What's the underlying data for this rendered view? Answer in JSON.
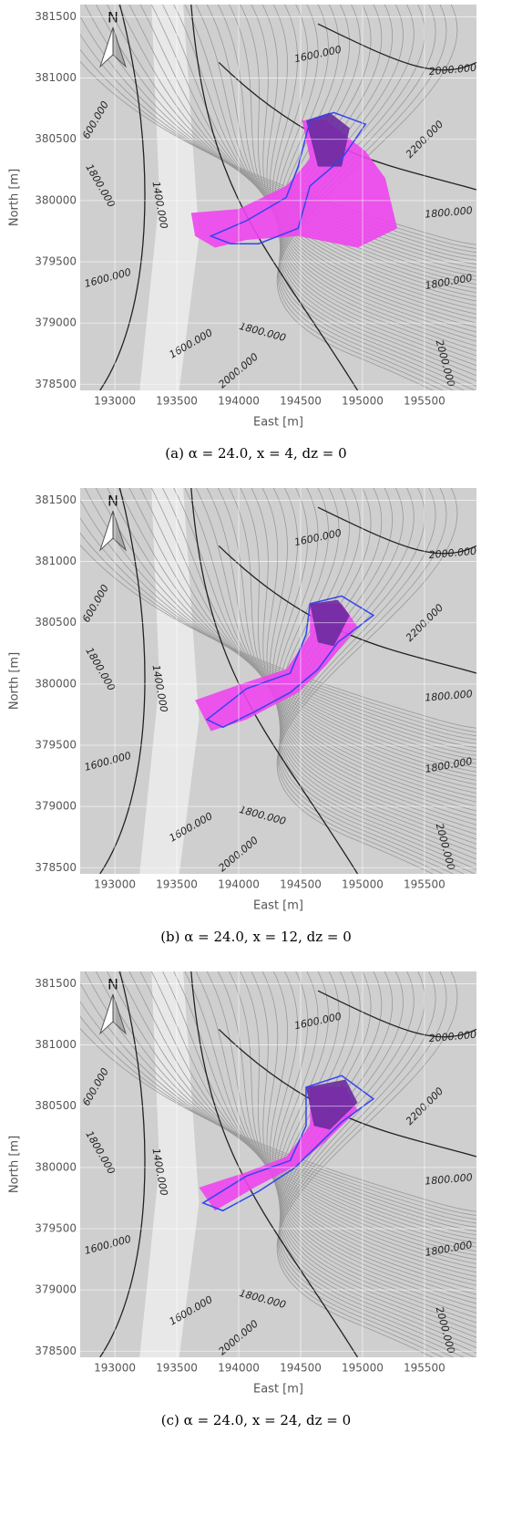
{
  "chart_data": [
    {
      "type": "map",
      "xlabel": "East [m]",
      "ylabel": "North [m]",
      "xlim": [
        192720,
        195920
      ],
      "ylim": [
        378450,
        381600
      ],
      "xticks": [
        193000,
        193500,
        194000,
        194500,
        195000,
        195500
      ],
      "yticks": [
        378500,
        379000,
        379500,
        380000,
        380500,
        381000,
        381500
      ],
      "north_label": "N",
      "contour_labels": [
        "1600.000",
        "2000.000",
        "600.000",
        "2200.000",
        "1800.000",
        "1400.000",
        "1800.000",
        "1600.000",
        "1800.000",
        "1800.000",
        "1600.000",
        "2000.000",
        "2000.000"
      ],
      "caption": "(a)  α = 24.0,    x = 4,    dz = 0"
    },
    {
      "type": "map",
      "xlabel": "East [m]",
      "ylabel": "North [m]",
      "xlim": [
        192720,
        195920
      ],
      "ylim": [
        378450,
        381600
      ],
      "xticks": [
        193000,
        193500,
        194000,
        194500,
        195000,
        195500
      ],
      "yticks": [
        378500,
        379000,
        379500,
        380000,
        380500,
        381000,
        381500
      ],
      "north_label": "N",
      "contour_labels": [
        "1600.000",
        "2000.000",
        "600.000",
        "2200.000",
        "1800.000",
        "1400.000",
        "1800.000",
        "1600.000",
        "1800.000",
        "1800.000",
        "1600.000",
        "2000.000",
        "2000.000"
      ],
      "caption": "(b)  α = 24.0,    x = 12,    dz = 0"
    },
    {
      "type": "map",
      "xlabel": "East [m]",
      "ylabel": "North [m]",
      "xlim": [
        192720,
        195920
      ],
      "ylim": [
        378450,
        381600
      ],
      "xticks": [
        193000,
        193500,
        194000,
        194500,
        195000,
        195500
      ],
      "yticks": [
        378500,
        379000,
        379500,
        380000,
        380500,
        381000,
        381500
      ],
      "north_label": "N",
      "contour_labels": [
        "1600.000",
        "2000.000",
        "600.000",
        "2200.000",
        "1800.000",
        "1400.000",
        "1800.000",
        "1600.000",
        "1800.000",
        "1800.000",
        "1600.000",
        "2000.000",
        "2000.000"
      ],
      "caption": "(c)  α = 24.0,    x = 24,    dz = 0"
    }
  ]
}
